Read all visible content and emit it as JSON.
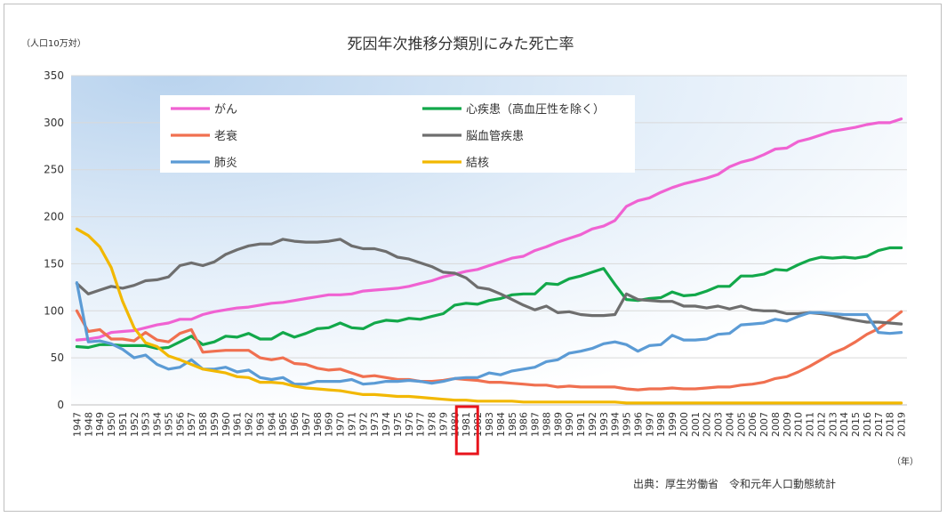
{
  "chart_data": {
    "type": "line",
    "title": "死因年次推移分類別にみた死亡率",
    "ylabel": "（人口10万対）",
    "xlabel": "（年）",
    "source": "出典：厚生労働省　令和元年人口動態統計",
    "ylim": [
      0,
      350
    ],
    "yticks": [
      0,
      50,
      100,
      150,
      200,
      250,
      300,
      350
    ],
    "grid": true,
    "legend_position": "top-left",
    "x": [
      1947,
      1948,
      1949,
      1950,
      1951,
      1952,
      1953,
      1954,
      1955,
      1956,
      1957,
      1958,
      1959,
      1960,
      1961,
      1962,
      1963,
      1964,
      1965,
      1966,
      1967,
      1968,
      1969,
      1970,
      1971,
      1972,
      1973,
      1974,
      1975,
      1976,
      1977,
      1978,
      1979,
      1980,
      1981,
      1982,
      1983,
      1984,
      1985,
      1986,
      1987,
      1988,
      1989,
      1990,
      1991,
      1992,
      1993,
      1994,
      1995,
      1996,
      1997,
      1998,
      1999,
      2000,
      2001,
      2002,
      2003,
      2004,
      2005,
      2006,
      2007,
      2008,
      2009,
      2010,
      2011,
      2012,
      2013,
      2014,
      2015,
      2016,
      2017,
      2018,
      2019
    ],
    "highlight_x": "1981",
    "series": [
      {
        "name": "がん",
        "color": "#f062d2",
        "values": [
          69,
          70,
          72,
          77,
          78,
          79,
          82,
          85,
          87,
          91,
          91,
          96,
          99,
          101,
          103,
          104,
          106,
          108,
          109,
          111,
          113,
          115,
          117,
          117,
          118,
          121,
          122,
          123,
          124,
          126,
          129,
          132,
          136,
          139,
          142,
          144,
          148,
          152,
          156,
          158,
          164,
          168,
          173,
          177,
          181,
          187,
          190,
          196,
          211,
          217,
          220,
          226,
          231,
          235,
          238,
          241,
          245,
          253,
          258,
          261,
          266,
          272,
          273,
          280,
          283,
          287,
          291,
          293,
          295,
          298,
          300,
          300,
          304
        ]
      },
      {
        "name": "心疾患（高血圧性を除く）",
        "color": "#12a84a",
        "values": [
          62,
          61,
          64,
          64,
          63,
          63,
          63,
          60,
          61,
          67,
          73,
          64,
          67,
          73,
          72,
          76,
          70,
          70,
          77,
          72,
          76,
          81,
          82,
          87,
          82,
          81,
          87,
          90,
          89,
          92,
          91,
          94,
          97,
          106,
          108,
          107,
          111,
          113,
          117,
          118,
          118,
          129,
          128,
          134,
          137,
          141,
          145,
          128,
          112,
          111,
          113,
          114,
          120,
          116,
          117,
          121,
          126,
          126,
          137,
          137,
          139,
          144,
          143,
          149,
          154,
          157,
          156,
          157,
          156,
          158,
          164,
          167,
          167
        ]
      },
      {
        "name": "老衰",
        "color": "#f07050",
        "values": [
          100,
          78,
          80,
          70,
          70,
          68,
          77,
          69,
          67,
          76,
          80,
          56,
          57,
          58,
          58,
          58,
          50,
          48,
          50,
          44,
          43,
          39,
          37,
          38,
          34,
          30,
          31,
          29,
          27,
          27,
          25,
          25,
          26,
          28,
          27,
          26,
          24,
          24,
          23,
          22,
          21,
          21,
          19,
          20,
          19,
          19,
          19,
          19,
          17,
          16,
          17,
          17,
          18,
          17,
          17,
          18,
          19,
          19,
          21,
          22,
          24,
          28,
          30,
          35,
          41,
          48,
          55,
          60,
          67,
          75,
          81,
          90,
          99
        ]
      },
      {
        "name": "脳血管疾患",
        "color": "#6e6e6e",
        "values": [
          129,
          118,
          122,
          126,
          124,
          127,
          132,
          133,
          136,
          148,
          151,
          148,
          152,
          160,
          165,
          169,
          171,
          171,
          176,
          174,
          173,
          173,
          174,
          176,
          169,
          166,
          166,
          163,
          157,
          155,
          151,
          147,
          141,
          140,
          135,
          125,
          123,
          118,
          112,
          106,
          101,
          105,
          98,
          99,
          96,
          95,
          95,
          96,
          118,
          112,
          111,
          110,
          110,
          105,
          105,
          103,
          105,
          102,
          105,
          101,
          100,
          100,
          97,
          97,
          98,
          97,
          95,
          92,
          90,
          88,
          88,
          87,
          86
        ]
      },
      {
        "name": "肺炎",
        "color": "#5b9bd5",
        "values": [
          130,
          67,
          68,
          65,
          59,
          50,
          53,
          43,
          38,
          40,
          48,
          38,
          38,
          40,
          35,
          37,
          29,
          27,
          29,
          22,
          22,
          25,
          25,
          25,
          27,
          22,
          23,
          25,
          25,
          26,
          25,
          23,
          25,
          28,
          29,
          29,
          34,
          32,
          36,
          38,
          40,
          46,
          48,
          55,
          57,
          60,
          65,
          67,
          64,
          57,
          63,
          64,
          74,
          69,
          69,
          70,
          75,
          76,
          85,
          86,
          87,
          91,
          89,
          94,
          98,
          98,
          97,
          96,
          96,
          96,
          77,
          76,
          77
        ]
      },
      {
        "name": "結核",
        "color": "#f2b800",
        "values": [
          187,
          180,
          168,
          146,
          110,
          82,
          66,
          62,
          52,
          48,
          43,
          38,
          36,
          34,
          30,
          29,
          24,
          24,
          23,
          20,
          18,
          17,
          16,
          15,
          13,
          11,
          11,
          10,
          9,
          9,
          8,
          7,
          6,
          5,
          5,
          4,
          4,
          4,
          4,
          3,
          3,
          3,
          3,
          3,
          3,
          3,
          3,
          3,
          2,
          2,
          2,
          2,
          2,
          2,
          2,
          2,
          2,
          2,
          2,
          2,
          2,
          2,
          2,
          2,
          2,
          2,
          2,
          2,
          2,
          2,
          2,
          2,
          2
        ]
      }
    ]
  }
}
